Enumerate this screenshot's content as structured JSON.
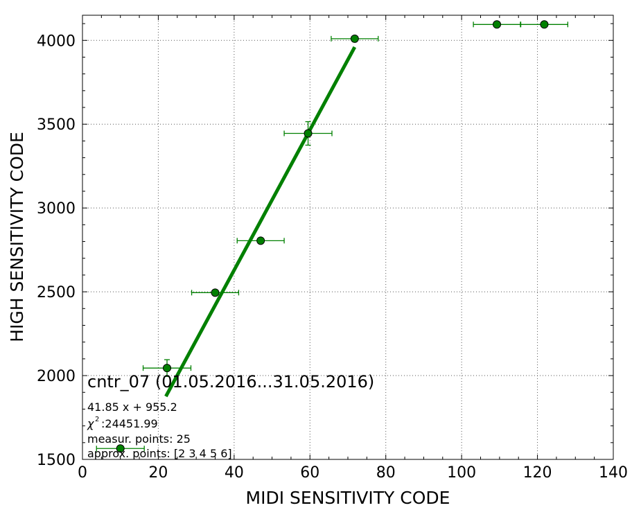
{
  "chart_data": {
    "type": "scatter",
    "title": "cntr_07 (01.05.2016...31.05.2016)",
    "xlabel": "MIDI SENSITIVITY CODE",
    "ylabel": "HIGH SENSITIVITY CODE",
    "xlim": [
      0,
      140
    ],
    "ylim": [
      1500,
      4150
    ],
    "xticks": [
      0,
      20,
      40,
      60,
      80,
      100,
      120,
      140
    ],
    "yticks": [
      1500,
      2000,
      2500,
      3000,
      3500,
      4000
    ],
    "grid": true,
    "colors": {
      "series": "#008000",
      "fit": "#008000",
      "errorbar": "#008000"
    },
    "points": [
      {
        "x": 10,
        "y": 1565,
        "xerr": 6.3,
        "yerr": 0
      },
      {
        "x": 22.3,
        "y": 2045,
        "xerr": 6.3,
        "yerr": 50
      },
      {
        "x": 35,
        "y": 2495,
        "xerr": 6.2,
        "yerr": 0
      },
      {
        "x": 47,
        "y": 2805,
        "xerr": 6.2,
        "yerr": 0
      },
      {
        "x": 59.5,
        "y": 3445,
        "xerr": 6.3,
        "yerr": 70
      },
      {
        "x": 71.8,
        "y": 4010,
        "xerr": 6.2,
        "yerr": 0
      },
      {
        "x": 109.3,
        "y": 4095,
        "xerr": 6.2,
        "yerr": 0
      },
      {
        "x": 121.8,
        "y": 4095,
        "xerr": 6.2,
        "yerr": 0
      }
    ],
    "fit": {
      "slope": 41.85,
      "intercept": 955.2,
      "x_range": [
        22,
        71.8
      ]
    },
    "annotations": [
      "41.85 x + 955.2",
      ":24451.99",
      "measur. points: 25",
      "approx. points: [2 3 4 5 6]"
    ],
    "chi_symbol": "χ",
    "chi_exp": "2"
  }
}
